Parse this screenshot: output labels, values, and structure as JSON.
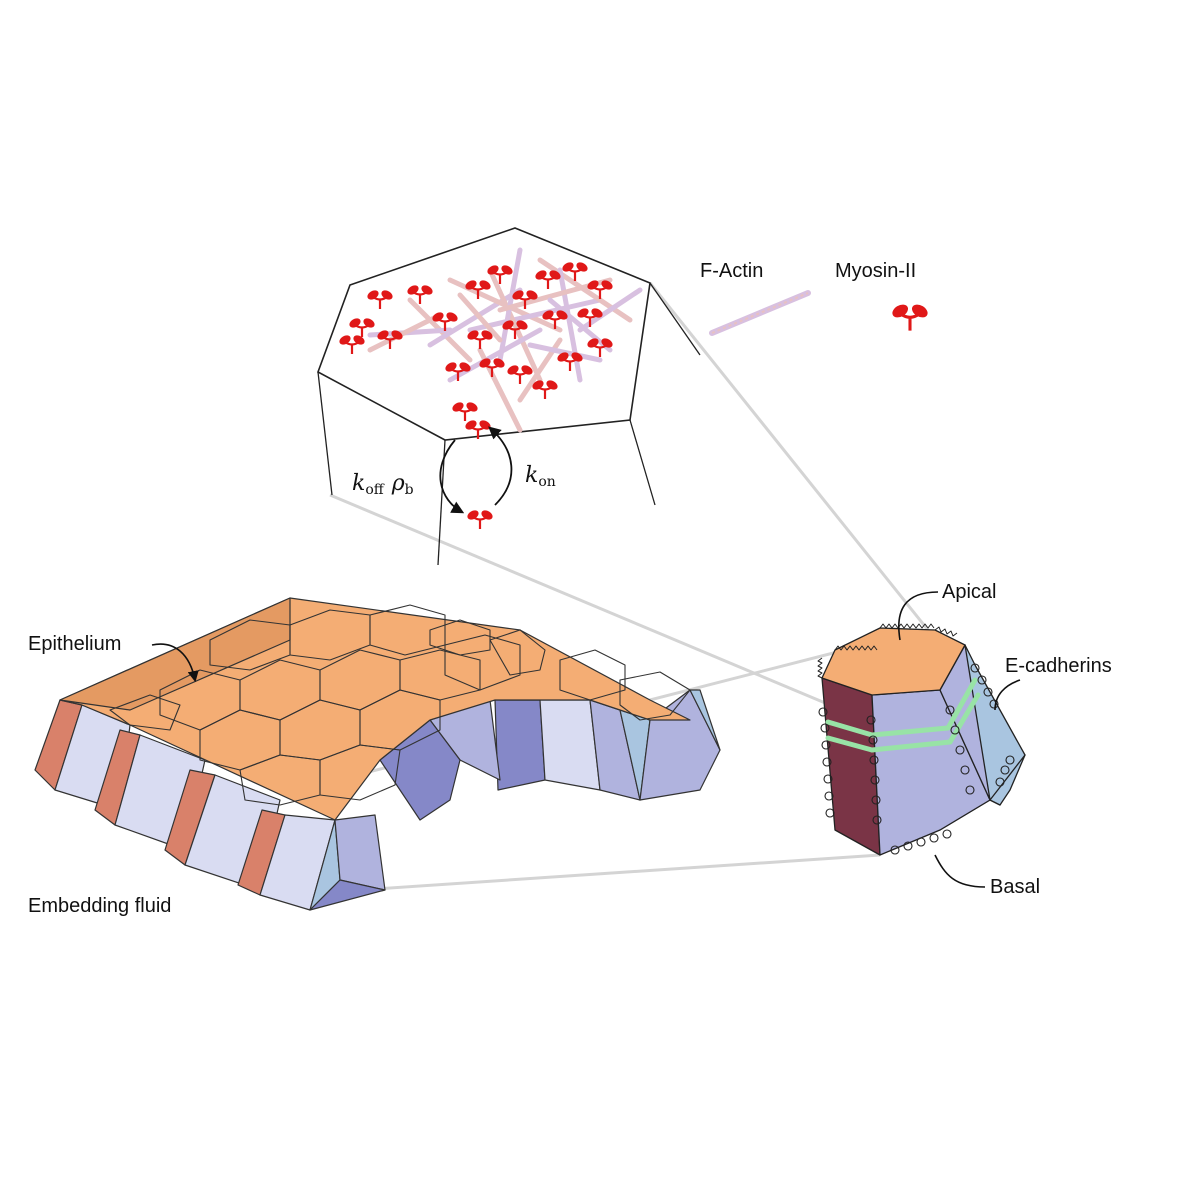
{
  "labels": {
    "epithelium": "Epithelium",
    "embedding_fluid": "Embedding fluid",
    "apical": "Apical",
    "e_cadherins": "E-cadherins",
    "basal": "Basal",
    "f_actin": "F-Actin",
    "myosin": "Myosin-II"
  },
  "rates": {
    "koff_symbol": "k",
    "koff_sub": "off",
    "rho_symbol": "ρ",
    "rho_sub": "b",
    "kon_symbol": "k",
    "kon_sub": "on"
  },
  "colors": {
    "apical": "#f4ad74",
    "apical_dark": "#e49a62",
    "lateral_light": "#d9dcf2",
    "lateral_mid": "#b0b3de",
    "lateral_dark": "#8588c8",
    "lateral_blue": "#a9c5e0",
    "cut_face": "#d9816a",
    "cut_face_dark": "#7a3446",
    "actin": "#e8c1c1",
    "myosin": "#e01818",
    "cadherin_green": "#98e3a6"
  },
  "icons": [
    "myosin-icon",
    "actin-filament-icon",
    "cadherin-ring-icon",
    "arrow-icon"
  ]
}
